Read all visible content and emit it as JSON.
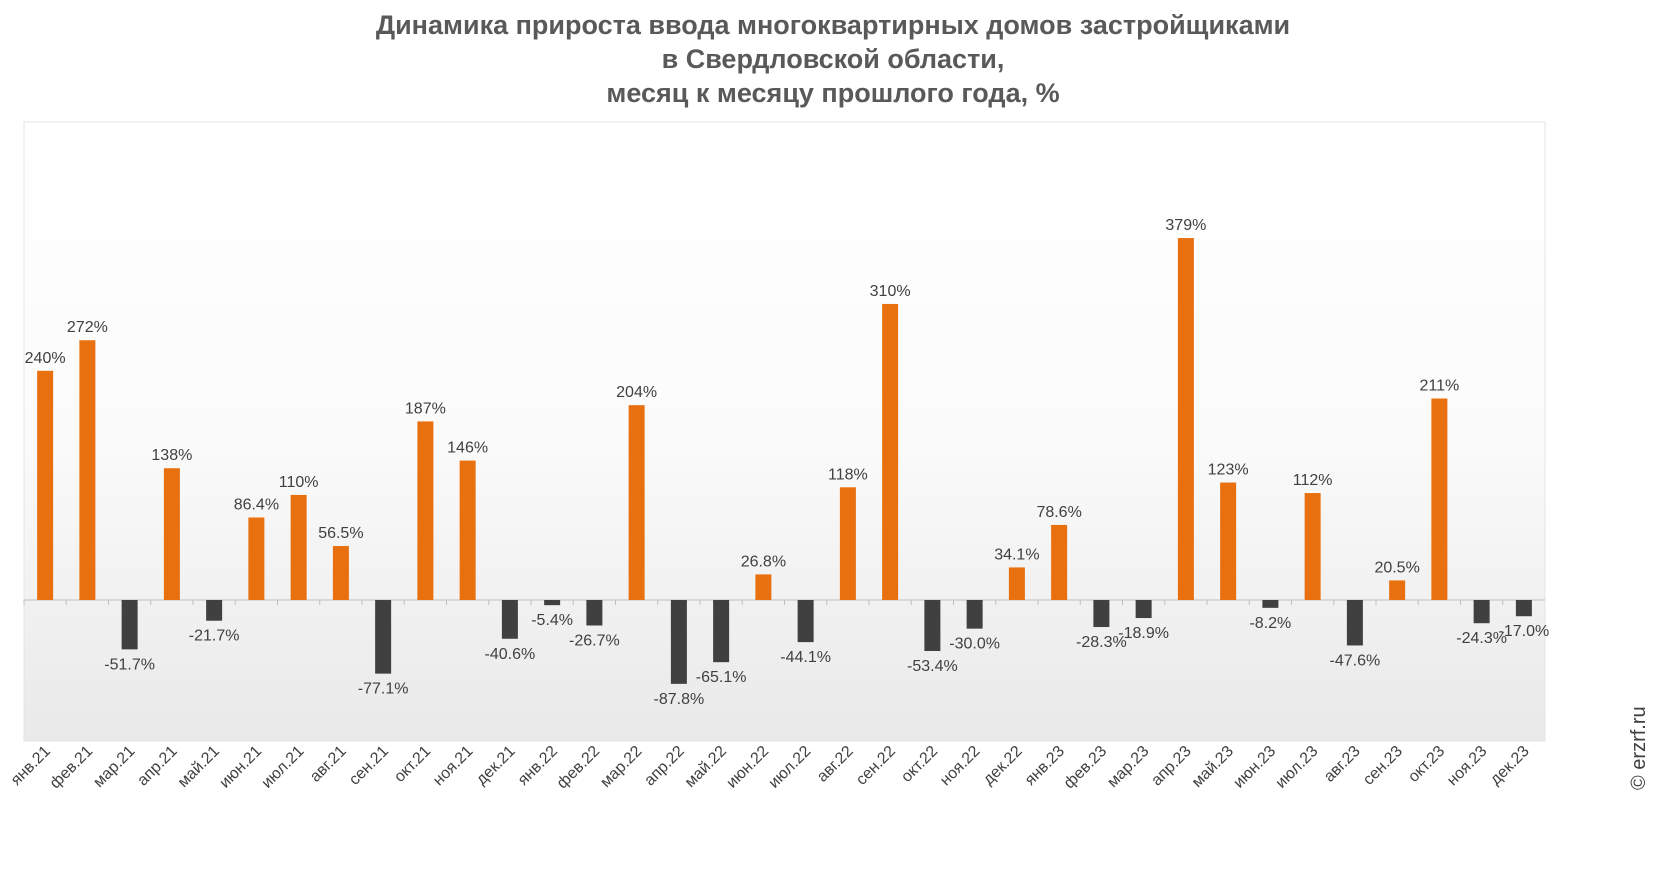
{
  "title_lines": [
    "Динамика прироста ввода многоквартирных домов застройщиками",
    "в Свердловской области,",
    "месяц к месяцу прошлого года, %"
  ],
  "watermark": "© erzrf.ru",
  "colors": {
    "positive": "#E8700F",
    "negative": "#404040",
    "label": "#404040",
    "axis": "#BFBFBF"
  },
  "chart_data": {
    "type": "bar",
    "title": "Динамика прироста ввода многоквартирных домов застройщиками в Свердловской области, месяц к месяцу прошлого года, %",
    "xlabel": "",
    "ylabel": "",
    "ylim": [
      -130,
      460
    ],
    "grid": false,
    "legend": "none",
    "categories": [
      "янв.21",
      "фев.21",
      "мар.21",
      "апр.21",
      "май.21",
      "июн.21",
      "июл.21",
      "авг.21",
      "сен.21",
      "окт.21",
      "ноя.21",
      "дек.21",
      "янв.22",
      "фев.22",
      "мар.22",
      "апр.22",
      "май.22",
      "июн.22",
      "июл.22",
      "авг.22",
      "сен.22",
      "окт.22",
      "ноя.22",
      "дек.22",
      "янв.23",
      "фев.23",
      "мар.23",
      "апр.23",
      "май.23",
      "июн.23",
      "июл.23",
      "авг.23",
      "сен.23",
      "окт.23",
      "ноя.23",
      "дек.23"
    ],
    "values": [
      240,
      272,
      -51.7,
      138,
      -21.7,
      86.4,
      110,
      56.5,
      -77.1,
      187,
      146,
      -40.6,
      -5.4,
      -26.7,
      204,
      -87.8,
      -65.1,
      26.8,
      -44.1,
      118,
      310,
      -53.4,
      -30.0,
      34.1,
      78.6,
      -28.3,
      -18.9,
      379,
      123,
      -8.2,
      112,
      -47.6,
      20.5,
      211,
      -24.3,
      -17.0
    ],
    "labels": [
      "240%",
      "272%",
      "-51.7%",
      "138%",
      "-21.7%",
      "86.4%",
      "110%",
      "56.5%",
      "-77.1%",
      "187%",
      "146%",
      "-40.6%",
      "-5.4%",
      "-26.7%",
      "204%",
      "-87.8%",
      "-65.1%",
      "26.8%",
      "-44.1%",
      "118%",
      "310%",
      "-53.4%",
      "-30.0%",
      "34.1%",
      "78.6%",
      "-28.3%",
      "-18.9%",
      "379%",
      "123%",
      "-8.2%",
      "112%",
      "-47.6%",
      "20.5%",
      "211%",
      "-24.3%",
      "-17.0%"
    ]
  }
}
